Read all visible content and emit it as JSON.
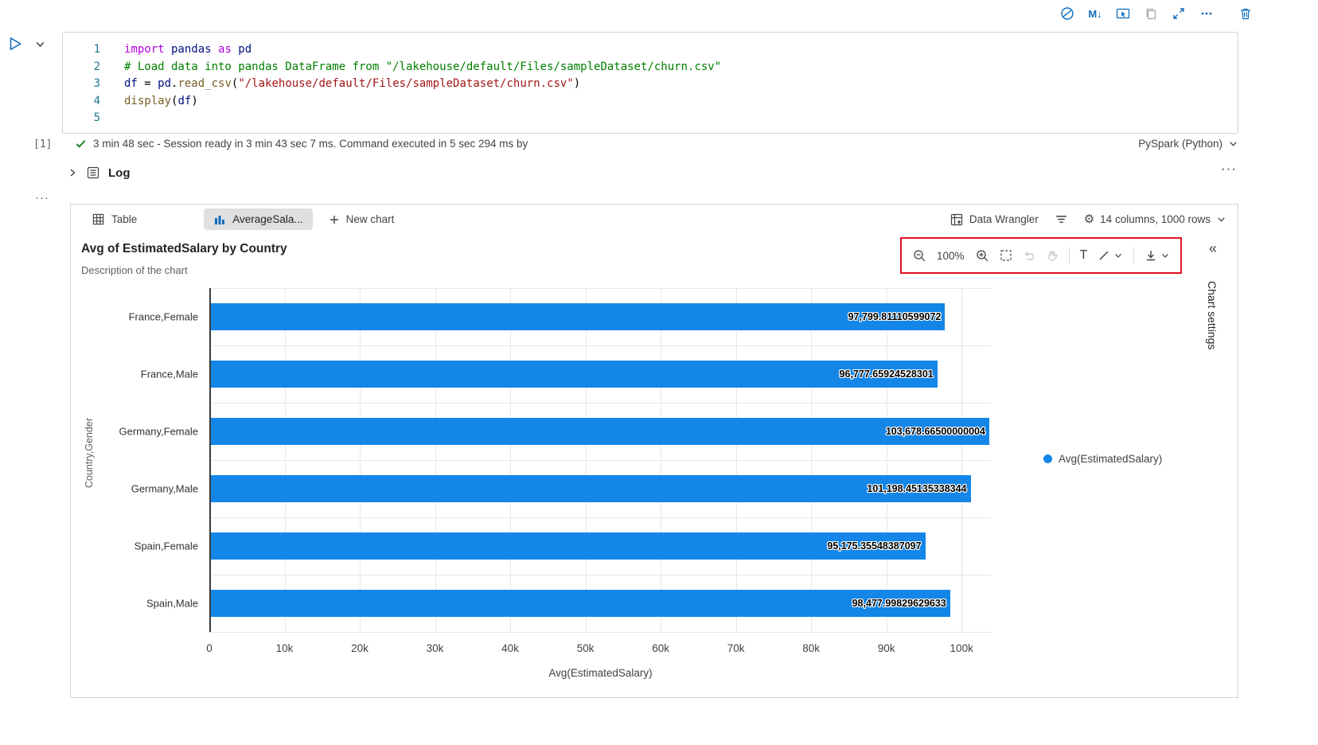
{
  "colors": {
    "accent": "#0f6cbd",
    "bar": "#1386e8",
    "annotation_red": "#e81123",
    "success_green": "#107c10",
    "selected_tab_bg": "#e0e0e0"
  },
  "top_toolbar": {
    "markdown_label": "M↓",
    "more_glyph": "···"
  },
  "code_cell": {
    "execution_count": "[1]",
    "lines": [
      {
        "num": "1",
        "tokens": [
          {
            "c": "kw",
            "t": "import"
          },
          {
            "c": "var",
            "t": " pandas "
          },
          {
            "c": "kw",
            "t": "as"
          },
          {
            "c": "var",
            "t": " pd"
          }
        ]
      },
      {
        "num": "2",
        "tokens": [
          {
            "c": "com",
            "t": "# Load data into pandas DataFrame from \"/lakehouse/default/Files/sampleDataset/churn.csv\""
          }
        ]
      },
      {
        "num": "3",
        "tokens": [
          {
            "c": "var",
            "t": "df"
          },
          {
            "c": "op",
            "t": " = "
          },
          {
            "c": "var",
            "t": "pd"
          },
          {
            "c": "op",
            "t": "."
          },
          {
            "c": "fn",
            "t": "read_csv"
          },
          {
            "c": "op",
            "t": "("
          },
          {
            "c": "str",
            "t": "\"/lakehouse/default/Files/sampleDataset/churn.csv\""
          },
          {
            "c": "op",
            "t": ")"
          }
        ]
      },
      {
        "num": "4",
        "tokens": [
          {
            "c": "fn",
            "t": "display"
          },
          {
            "c": "op",
            "t": "("
          },
          {
            "c": "var",
            "t": "df"
          },
          {
            "c": "op",
            "t": ")"
          }
        ]
      },
      {
        "num": "5",
        "tokens": []
      }
    ],
    "status_text": "3 min 48 sec - Session ready in 3 min 43 sec 7 ms. Command executed in 5 sec 294 ms by",
    "kernel": "PySpark (Python)"
  },
  "log_section": {
    "label": "Log",
    "more_glyph": "···"
  },
  "cell_more_glyph": "···",
  "output": {
    "tabs": {
      "table": "Table",
      "chart": "AverageSala...",
      "new_chart": "New chart"
    },
    "data_wrangler": "Data Wrangler",
    "table_info": "14 columns, 1000 rows"
  },
  "chart_panel": {
    "title": "Avg of EstimatedSalary by Country",
    "subtitle": "Description of the chart",
    "zoom_level": "100%",
    "text_tool": "T",
    "collapse_glyph": "«",
    "settings_label": "Chart settings",
    "legend_label": "Avg(EstimatedSalary)"
  },
  "chart_data": {
    "type": "bar",
    "orientation": "horizontal",
    "title": "Avg of EstimatedSalary by Country",
    "subtitle": "Description of the chart",
    "xlabel": "Avg(EstimatedSalary)",
    "ylabel": "Country,Gender",
    "categories": [
      "France,Female",
      "France,Male",
      "Germany,Female",
      "Germany,Male",
      "Spain,Female",
      "Spain,Male"
    ],
    "values": [
      97799.81110599072,
      96777.65924528301,
      103678.66500000004,
      101198.45135338344,
      95175.35548387097,
      98477.99829629633
    ],
    "value_labels": [
      "97,799.81110599072",
      "96,777.65924528301",
      "103,678.66500000004",
      "101,198.45135338344",
      "95,175.35548387097",
      "98,477.99829629633"
    ],
    "legend": [
      "Avg(EstimatedSalary)"
    ],
    "legend_position": "right",
    "grid": true,
    "xlim": [
      0,
      104000
    ],
    "xticks": [
      0,
      10000,
      20000,
      30000,
      40000,
      50000,
      60000,
      70000,
      80000,
      90000,
      100000
    ],
    "xtick_labels": [
      "0",
      "10k",
      "20k",
      "30k",
      "40k",
      "50k",
      "60k",
      "70k",
      "80k",
      "90k",
      "100k"
    ],
    "bar_color": "#1386e8"
  }
}
